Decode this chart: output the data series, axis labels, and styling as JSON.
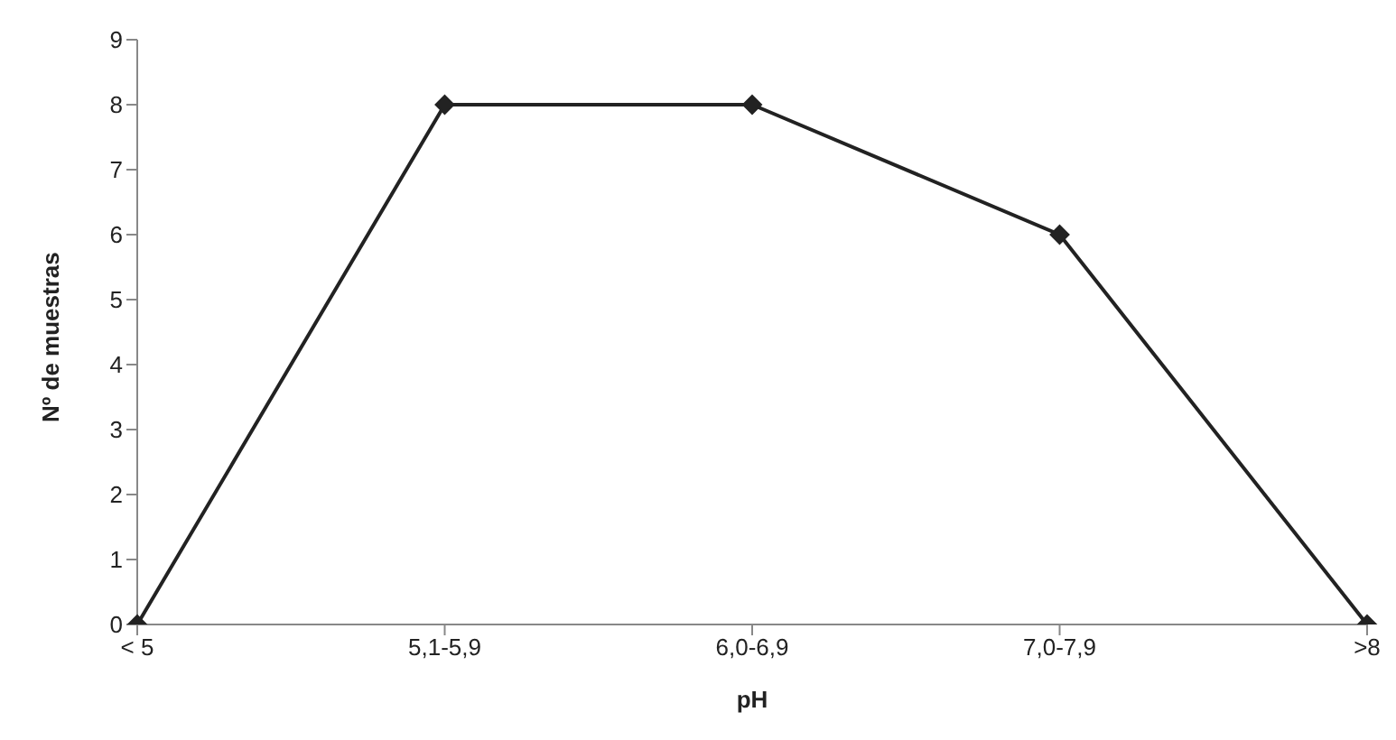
{
  "chart_data": {
    "type": "line",
    "xlabel": "pH",
    "ylabel": "Nº de muestras",
    "categories": [
      "< 5",
      "5,1-5,9",
      "6,0-6,9",
      "7,0-7,9",
      ">8"
    ],
    "series": [
      {
        "color": "#222222",
        "values": [
          0,
          8,
          8,
          6,
          0
        ]
      }
    ],
    "ylim": [
      0,
      9
    ],
    "yticks": [
      0,
      1,
      2,
      3,
      4,
      5,
      6,
      7,
      8,
      9
    ],
    "grid": false,
    "legend": false,
    "marker": "diamond",
    "line_style": "solid"
  }
}
